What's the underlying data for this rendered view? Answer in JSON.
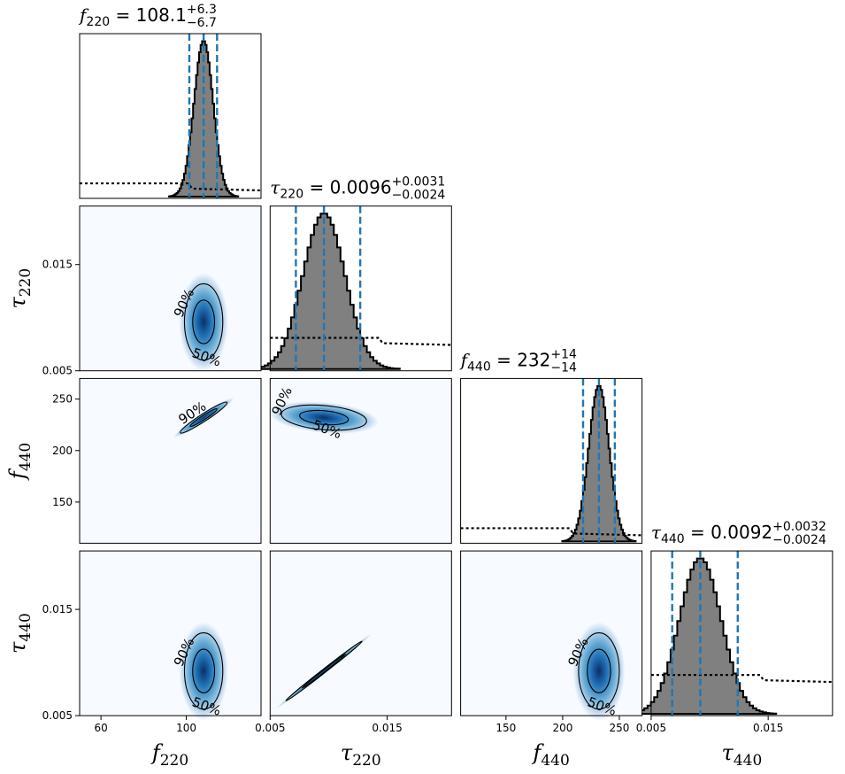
{
  "chart_data": {
    "type": "corner",
    "parameters": [
      {
        "key": "f220",
        "symbol": "f",
        "subscript": "220",
        "range": [
          50,
          135
        ],
        "ticks": [
          60,
          100
        ],
        "tick_labels": [
          "60",
          "100"
        ],
        "median": 108.1,
        "plus": "+6.3",
        "minus": "−6.7",
        "median_label": "108.1",
        "quantiles": [
          101.4,
          108.1,
          114.4
        ],
        "sd": 4.5,
        "prior_level": 0.085
      },
      {
        "key": "tau220",
        "symbol": "τ",
        "subscript": "220",
        "range": [
          0.005,
          0.0205
        ],
        "ticks": [
          0.005,
          0.015
        ],
        "tick_labels": [
          "0.005",
          "0.015"
        ],
        "median": 0.0096,
        "plus": "+0.0031",
        "minus": "−0.0024",
        "median_label": "0.0096",
        "quantiles": [
          0.0072,
          0.0096,
          0.0127
        ],
        "sd": 0.0018,
        "prior_level": 0.2
      },
      {
        "key": "f440",
        "symbol": "f",
        "subscript": "440",
        "range": [
          110,
          270
        ],
        "ticks": [
          150,
          200,
          250
        ],
        "tick_labels": [
          "150",
          "200",
          "250"
        ],
        "median": 232,
        "plus": "+14",
        "minus": "−14",
        "median_label": "232",
        "quantiles": [
          218,
          232,
          246
        ],
        "sd": 9,
        "prior_level": 0.085
      },
      {
        "key": "tau440",
        "symbol": "τ",
        "subscript": "440",
        "range": [
          0.005,
          0.0205
        ],
        "ticks": [
          0.005,
          0.015
        ],
        "tick_labels": [
          "0.005",
          "0.015"
        ],
        "median": 0.0092,
        "plus": "+0.0032",
        "minus": "−0.0024",
        "median_label": "0.0092",
        "quantiles": [
          0.0068,
          0.0092,
          0.0124
        ],
        "sd": 0.0018,
        "prior_level": 0.25
      }
    ],
    "contour_levels": [
      "50%",
      "90%"
    ],
    "quantile_line_color": "#1f77b4",
    "histogram_fill": "#808080",
    "density_colormap": [
      "#f7fbff",
      "#c6dbef",
      "#6baed6",
      "#2171b5",
      "#08306b"
    ],
    "legend": null
  }
}
